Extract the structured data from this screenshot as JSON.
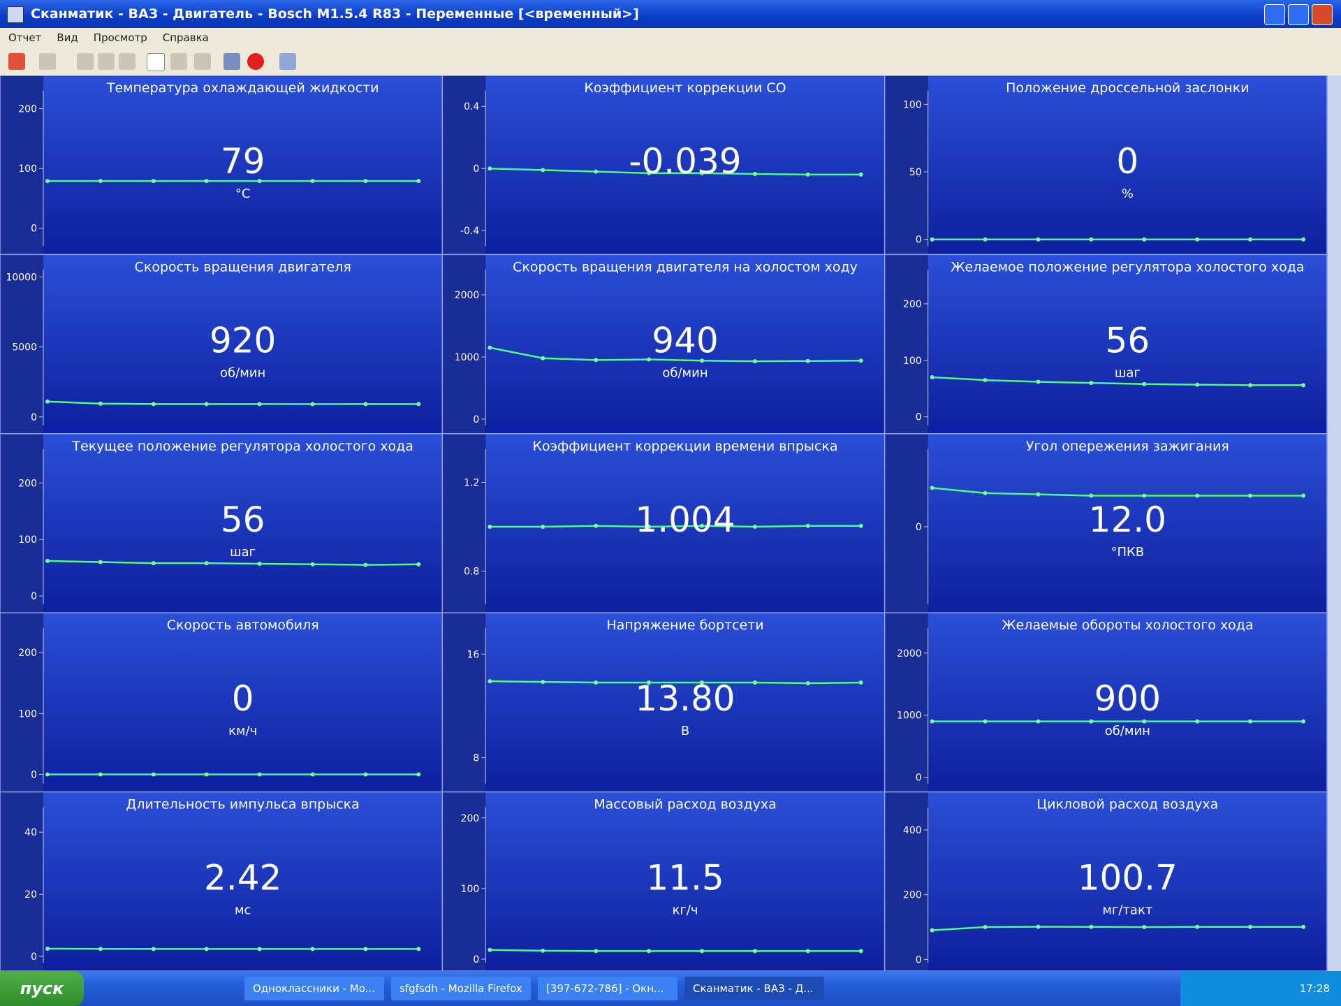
{
  "window": {
    "title": "Сканматик - ВАЗ - Двигатель - Bosch M1.5.4 R83 - Переменные [<временный>]",
    "menu": [
      "Отчет",
      "Вид",
      "Просмотр",
      "Справка"
    ]
  },
  "panels": [
    {
      "title": "Температура охлаждающей жидкости",
      "value": "79",
      "unit": "°C",
      "ylim": [
        -30,
        230
      ],
      "yticks": [
        0,
        100,
        200
      ],
      "trend": [
        79,
        79,
        79,
        79,
        79,
        79,
        79,
        79
      ]
    },
    {
      "title": "Коэффициент коррекции CO",
      "value": "-0.039",
      "ylim": [
        -0.5,
        0.5
      ],
      "yticks": [
        -0.4,
        0,
        0.4
      ],
      "trend": [
        0.0,
        -0.01,
        -0.02,
        -0.03,
        -0.03,
        -0.035,
        -0.039,
        -0.039
      ]
    },
    {
      "title": "Положение дроссельной заслонки",
      "value": "0",
      "unit": "%",
      "ylim": [
        -5,
        110
      ],
      "yticks": [
        0,
        50,
        100
      ],
      "trend": [
        0,
        0,
        0,
        0,
        0,
        0,
        0,
        0
      ]
    },
    {
      "title": "Скорость вращения двигателя",
      "value": "920",
      "unit": "об/мин",
      "ylim": [
        -600,
        10500
      ],
      "yticks": [
        0,
        5000,
        10000
      ],
      "trend": [
        1100,
        950,
        920,
        920,
        920,
        910,
        920,
        920
      ]
    },
    {
      "title": "Скорость вращения двигателя на холостом ходу",
      "value": "940",
      "unit": "об/мин",
      "ylim": [
        -100,
        2400
      ],
      "yticks": [
        0,
        1000,
        2000
      ],
      "trend": [
        1150,
        980,
        950,
        960,
        940,
        930,
        935,
        940
      ]
    },
    {
      "title": "Желаемое положение регулятора холостого хода",
      "value": "56",
      "unit": "шаг",
      "ylim": [
        -15,
        260
      ],
      "yticks": [
        0,
        100,
        200
      ],
      "trend": [
        70,
        65,
        62,
        60,
        58,
        57,
        56,
        56
      ]
    },
    {
      "title": "Текущее положение регулятора холостого хода",
      "value": "56",
      "unit": "шаг",
      "ylim": [
        -15,
        260
      ],
      "yticks": [
        0,
        100,
        200
      ],
      "trend": [
        62,
        60,
        58,
        58,
        57,
        56,
        55,
        56
      ]
    },
    {
      "title": "Коэффициент коррекции времени впрыска",
      "value": "1.004",
      "ylim": [
        0.65,
        1.35
      ],
      "yticks": [
        0.8,
        1.2
      ],
      "trend": [
        1.0,
        1.0,
        1.004,
        1.0,
        1.004,
        1.0,
        1.004,
        1.004
      ]
    },
    {
      "title": "Угол опережения зажигания",
      "value": "12.0",
      "unit": "°ПКВ",
      "ylim": [
        -30,
        30
      ],
      "yticks": [
        0
      ],
      "trend": [
        15,
        13,
        12.5,
        12,
        12,
        12,
        12,
        12
      ]
    },
    {
      "title": "Скорость автомобиля",
      "value": "0",
      "unit": "км/ч",
      "ylim": [
        -15,
        240
      ],
      "yticks": [
        0,
        100,
        200
      ],
      "trend": [
        0,
        0,
        0,
        0,
        0,
        0,
        0,
        0
      ]
    },
    {
      "title": "Напряжение бортсети",
      "value": "13.80",
      "unit": "В",
      "ylim": [
        6,
        18
      ],
      "yticks": [
        8,
        16
      ],
      "trend": [
        13.9,
        13.85,
        13.8,
        13.8,
        13.8,
        13.8,
        13.75,
        13.8
      ]
    },
    {
      "title": "Желаемые обороты холостого хода",
      "value": "900",
      "unit": "об/мин",
      "ylim": [
        -100,
        2400
      ],
      "yticks": [
        0,
        1000,
        2000
      ],
      "trend": [
        900,
        900,
        900,
        900,
        900,
        900,
        900,
        900
      ]
    },
    {
      "title": "Длительность импульса впрыска",
      "value": "2.42",
      "unit": "мс",
      "ylim": [
        -2,
        48
      ],
      "yticks": [
        0,
        20,
        40
      ],
      "trend": [
        2.5,
        2.45,
        2.42,
        2.42,
        2.4,
        2.42,
        2.42,
        2.42
      ]
    },
    {
      "title": "Массовый расход воздуха",
      "value": "11.5",
      "unit": "кг/ч",
      "ylim": [
        -5,
        215
      ],
      "yticks": [
        0,
        100,
        200
      ],
      "trend": [
        13,
        12,
        11.5,
        11.5,
        11.5,
        11.5,
        11.5,
        11.5
      ]
    },
    {
      "title": "Цикловой расход воздуха",
      "value": "100.7",
      "unit": "мг/такт",
      "ylim": [
        -10,
        470
      ],
      "yticks": [
        0,
        200,
        400
      ],
      "trend": [
        90,
        100,
        101,
        100.7,
        100,
        100.7,
        100.7,
        100.7
      ]
    }
  ],
  "taskbar": {
    "start": "пуск",
    "tasks": [
      "Одноклассники - Mo...",
      "sfgfsdh - Mozilla Firefox",
      "[397-672-786] - Окн...",
      "Сканматик - ВАЗ - Д..."
    ],
    "clock": "17:28"
  }
}
